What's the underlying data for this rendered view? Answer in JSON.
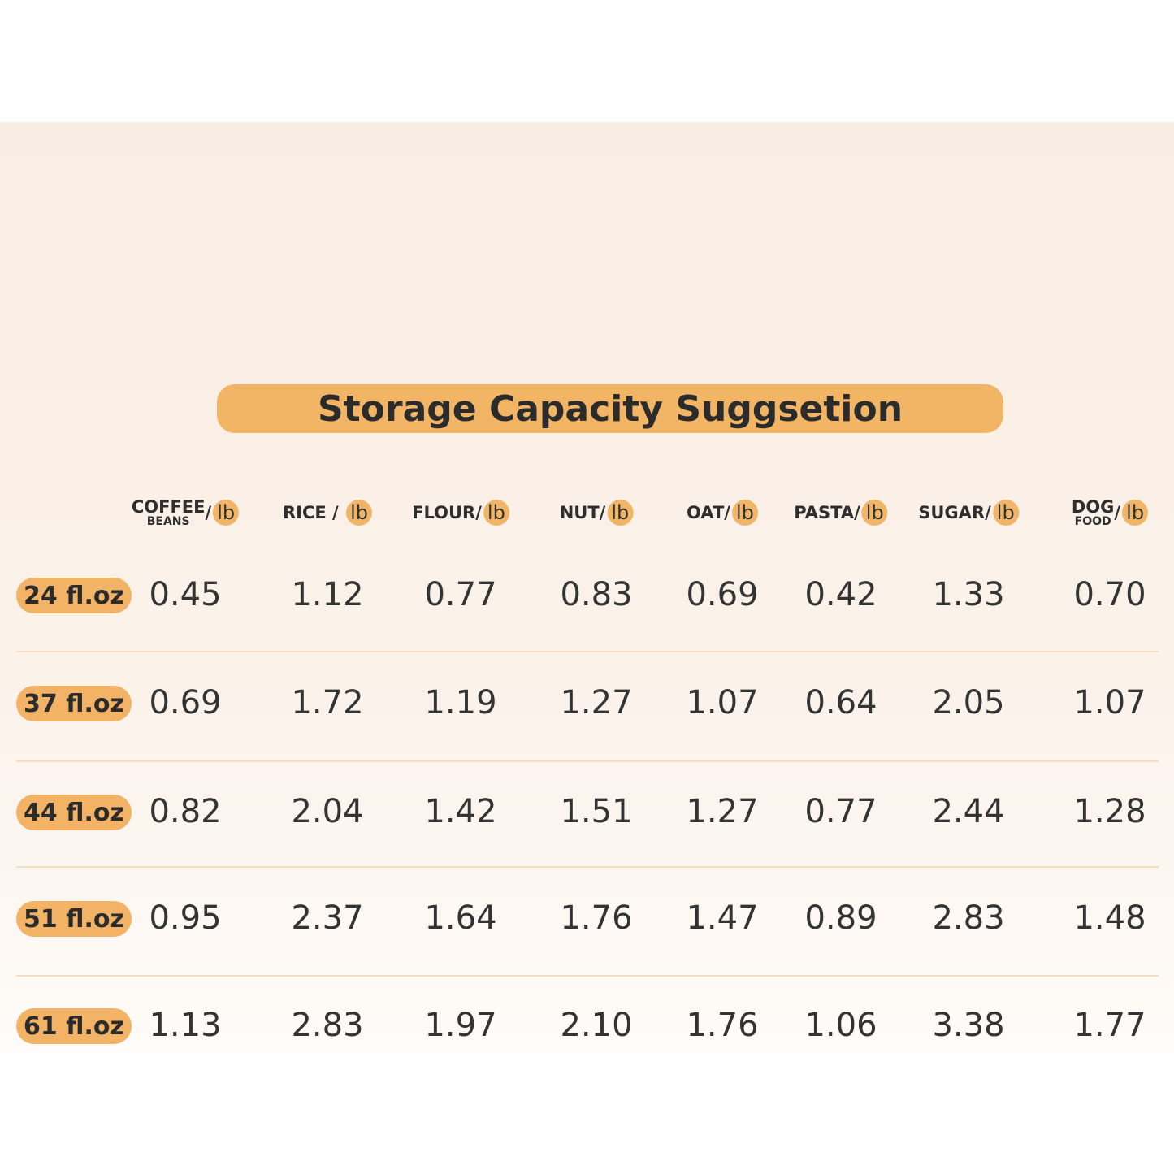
{
  "title": "Storage Capacity Suggsetion",
  "table": {
    "columns": [
      {
        "lines": [
          "COFFEE",
          "BEANS"
        ],
        "sep": "/",
        "unit": "lb"
      },
      {
        "lines": [
          "RICE"
        ],
        "sep": " / ",
        "unit": "lb"
      },
      {
        "lines": [
          "FLOUR"
        ],
        "sep": "/",
        "unit": "lb"
      },
      {
        "lines": [
          "NUT"
        ],
        "sep": "/",
        "unit": "lb"
      },
      {
        "lines": [
          "OAT"
        ],
        "sep": "/",
        "unit": "lb"
      },
      {
        "lines": [
          "PASTA"
        ],
        "sep": "/",
        "unit": "lb"
      },
      {
        "lines": [
          "SUGAR"
        ],
        "sep": "/",
        "unit": "lb"
      },
      {
        "lines": [
          "DOG",
          "FOOD"
        ],
        "sep": "/",
        "unit": "lb"
      }
    ],
    "rows": [
      {
        "size": "24 fl.oz",
        "values": [
          "0.45",
          "1.12",
          "0.77",
          "0.83",
          "0.69",
          "0.42",
          "1.33",
          "0.70"
        ]
      },
      {
        "size": "37 fl.oz",
        "values": [
          "0.69",
          "1.72",
          "1.19",
          "1.27",
          "1.07",
          "0.64",
          "2.05",
          "1.07"
        ]
      },
      {
        "size": "44 fl.oz",
        "values": [
          "0.82",
          "2.04",
          "1.42",
          "1.51",
          "1.27",
          "0.77",
          "2.44",
          "1.28"
        ]
      },
      {
        "size": "51 fl.oz",
        "values": [
          "0.95",
          "2.37",
          "1.64",
          "1.76",
          "1.47",
          "0.89",
          "2.83",
          "1.48"
        ]
      },
      {
        "size": "61 fl.oz",
        "values": [
          "1.13",
          "2.83",
          "1.97",
          "2.10",
          "1.76",
          "1.06",
          "3.38",
          "1.77"
        ]
      }
    ]
  }
}
